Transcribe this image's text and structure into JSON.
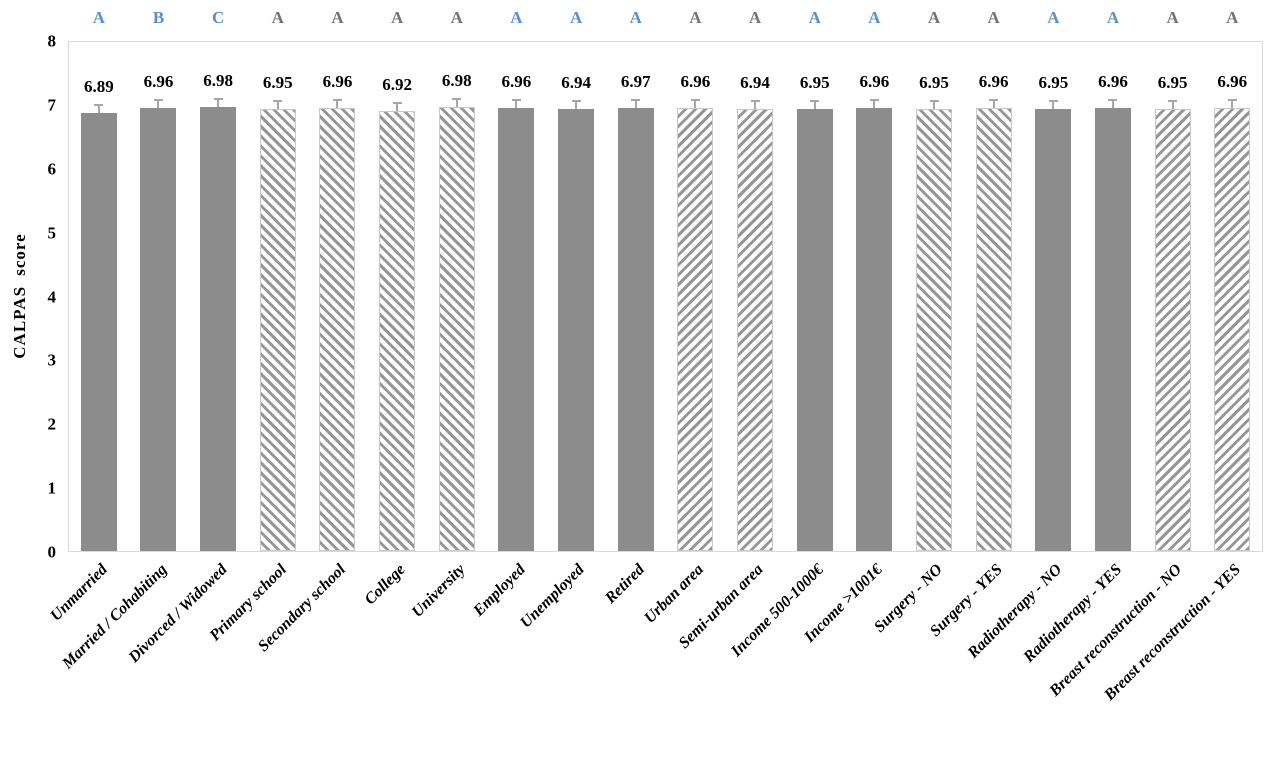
{
  "colors": {
    "solid_bar": "#8c8c8c",
    "hatch_stripe": "#969696",
    "bar_outline": "#c9c9c9",
    "error_bar": "#a6a6a6",
    "letter_blue": "#5b8fc9",
    "letter_gray": "#737373",
    "plot_border": "#d9d9d9",
    "text": "#000000"
  },
  "chart_data": {
    "type": "bar",
    "title": "",
    "xlabel": "",
    "ylabel": "CALPAS score",
    "ylim": [
      0,
      8
    ],
    "yticks": [
      0,
      1,
      2,
      3,
      4,
      5,
      6,
      7,
      8
    ],
    "grid": false,
    "legend": "none",
    "error_bars_shown": true,
    "error_bar_approx": 0.1,
    "categories": [
      "Unmarried",
      "Married / Cohabiting",
      "Divorced / Widowed",
      "Primary school",
      "Secondary school",
      "College",
      "University",
      "Employed",
      "Unemployed",
      "Retired",
      "Urban area",
      "Semi-urban area",
      "Income 500-1000€",
      "Income >1001€",
      "Surgery - NO",
      "Surgery - YES",
      "Radiotherapy - NO",
      "Radiotherapy - YES",
      "Breast reconstruction - NO",
      "Breast reconstruction - YES"
    ],
    "values": [
      6.89,
      6.96,
      6.98,
      6.95,
      6.96,
      6.92,
      6.98,
      6.96,
      6.94,
      6.97,
      6.96,
      6.94,
      6.95,
      6.96,
      6.95,
      6.96,
      6.95,
      6.96,
      6.95,
      6.96
    ],
    "bars": [
      {
        "category": "Unmarried",
        "value": 6.89,
        "label": "6.89",
        "letter": "A",
        "letter_color": "blue",
        "fill": "solid"
      },
      {
        "category": "Married / Cohabiting",
        "value": 6.96,
        "label": "6.96",
        "letter": "B",
        "letter_color": "blue",
        "fill": "solid"
      },
      {
        "category": "Divorced / Widowed",
        "value": 6.98,
        "label": "6.98",
        "letter": "C",
        "letter_color": "blue",
        "fill": "solid"
      },
      {
        "category": "Primary school",
        "value": 6.95,
        "label": "6.95",
        "letter": "A",
        "letter_color": "gray",
        "fill": "hatch-back"
      },
      {
        "category": "Secondary school",
        "value": 6.96,
        "label": "6.96",
        "letter": "A",
        "letter_color": "gray",
        "fill": "hatch-back"
      },
      {
        "category": "College",
        "value": 6.92,
        "label": "6.92",
        "letter": "A",
        "letter_color": "gray",
        "fill": "hatch-back"
      },
      {
        "category": "University",
        "value": 6.98,
        "label": "6.98",
        "letter": "A",
        "letter_color": "gray",
        "fill": "hatch-back"
      },
      {
        "category": "Employed",
        "value": 6.96,
        "label": "6.96",
        "letter": "A",
        "letter_color": "blue",
        "fill": "solid"
      },
      {
        "category": "Unemployed",
        "value": 6.94,
        "label": "6.94",
        "letter": "A",
        "letter_color": "blue",
        "fill": "solid"
      },
      {
        "category": "Retired",
        "value": 6.97,
        "label": "6.97",
        "letter": "A",
        "letter_color": "blue",
        "fill": "solid"
      },
      {
        "category": "Urban area",
        "value": 6.96,
        "label": "6.96",
        "letter": "A",
        "letter_color": "gray",
        "fill": "hatch-fwd"
      },
      {
        "category": "Semi-urban area",
        "value": 6.94,
        "label": "6.94",
        "letter": "A",
        "letter_color": "gray",
        "fill": "hatch-fwd"
      },
      {
        "category": "Income 500-1000€",
        "value": 6.95,
        "label": "6.95",
        "letter": "A",
        "letter_color": "blue",
        "fill": "solid"
      },
      {
        "category": "Income >1001€",
        "value": 6.96,
        "label": "6.96",
        "letter": "A",
        "letter_color": "blue",
        "fill": "solid"
      },
      {
        "category": "Surgery - NO",
        "value": 6.95,
        "label": "6.95",
        "letter": "A",
        "letter_color": "gray",
        "fill": "hatch-back"
      },
      {
        "category": "Surgery - YES",
        "value": 6.96,
        "label": "6.96",
        "letter": "A",
        "letter_color": "gray",
        "fill": "hatch-back"
      },
      {
        "category": "Radiotherapy - NO",
        "value": 6.95,
        "label": "6.95",
        "letter": "A",
        "letter_color": "blue",
        "fill": "solid"
      },
      {
        "category": "Radiotherapy - YES",
        "value": 6.96,
        "label": "6.96",
        "letter": "A",
        "letter_color": "blue",
        "fill": "solid"
      },
      {
        "category": "Breast reconstruction - NO",
        "value": 6.95,
        "label": "6.95",
        "letter": "A",
        "letter_color": "gray",
        "fill": "hatch-fwd"
      },
      {
        "category": "Breast reconstruction - YES",
        "value": 6.96,
        "label": "6.96",
        "letter": "A",
        "letter_color": "gray",
        "fill": "hatch-fwd"
      }
    ]
  }
}
